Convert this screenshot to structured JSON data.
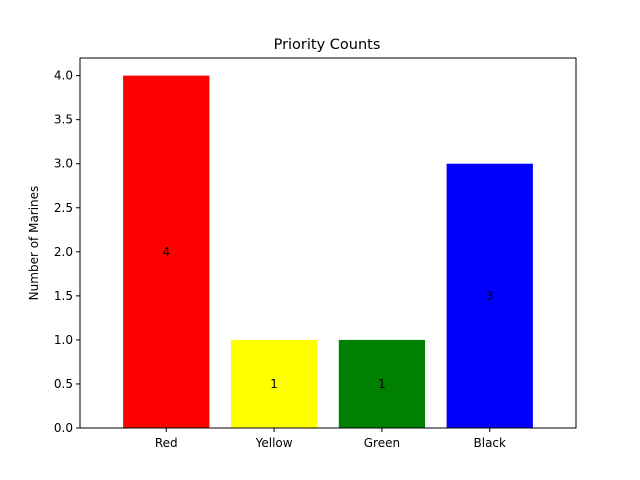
{
  "chart_data": {
    "type": "bar",
    "title": "Priority Counts",
    "xlabel": "",
    "ylabel": "Number of Marines",
    "categories": [
      "Red",
      "Yellow",
      "Green",
      "Black"
    ],
    "values": [
      4,
      1,
      1,
      3
    ],
    "data_labels": [
      "4",
      "1",
      "1",
      "3"
    ],
    "colors": [
      "#ff0000",
      "#ffff00",
      "#008000",
      "#0000ff"
    ],
    "ylim": [
      0,
      4.2
    ],
    "yticks": [
      0.0,
      0.5,
      1.0,
      1.5,
      2.0,
      2.5,
      3.0,
      3.5,
      4.0
    ],
    "ytick_labels": [
      "0.0",
      "0.5",
      "1.0",
      "1.5",
      "2.0",
      "2.5",
      "3.0",
      "3.5",
      "4.0"
    ],
    "grid": false,
    "legend": "none"
  }
}
